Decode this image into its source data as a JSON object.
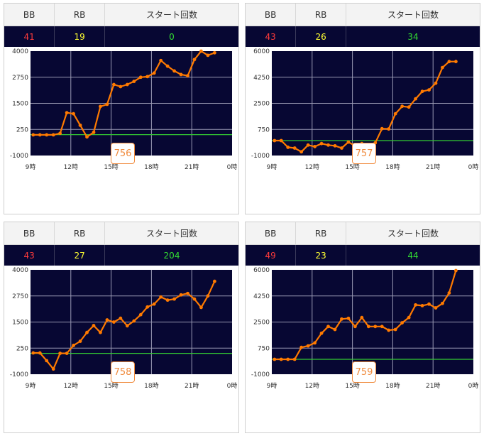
{
  "headers": {
    "bb": "BB",
    "rb": "RB",
    "start": "スタート回数"
  },
  "colors": {
    "plot_bg": "#070733",
    "line": "#ff7a00",
    "baseline": "#33cc33",
    "grid": "#9a9ab4",
    "bb": "#ff3b3b",
    "rb": "#ffff33",
    "start": "#33dd33",
    "button": "#f08a3c"
  },
  "panels": [
    {
      "bb": "41",
      "rb": "19",
      "start": "0",
      "machine": "756"
    },
    {
      "bb": "43",
      "rb": "26",
      "start": "34",
      "machine": "757"
    },
    {
      "bb": "43",
      "rb": "27",
      "start": "204",
      "machine": "758"
    },
    {
      "bb": "49",
      "rb": "23",
      "start": "44",
      "machine": "759"
    }
  ],
  "chart_data": [
    {
      "type": "line",
      "x_ticks": [
        "9時",
        "12時",
        "15時",
        "18時",
        "21時",
        "0時"
      ],
      "y_ticks": [
        "4000",
        "2750",
        "1500",
        "250",
        "-1000"
      ],
      "xlim": [
        9,
        24
      ],
      "ylim": [
        -1000,
        4000
      ],
      "baseline": 0,
      "grid": true,
      "x": [
        9.2,
        9.7,
        10.2,
        10.7,
        11.2,
        11.7,
        12.2,
        12.7,
        13.2,
        13.7,
        14.2,
        14.7,
        15.2,
        15.7,
        16.2,
        16.7,
        17.2,
        17.7,
        18.2,
        18.7,
        19.2,
        19.7,
        20.2,
        20.7,
        21.2,
        21.7,
        22.2,
        22.7
      ],
      "y": [
        -10,
        -10,
        -10,
        -10,
        60,
        1050,
        1000,
        450,
        -110,
        110,
        1350,
        1450,
        2400,
        2300,
        2400,
        2550,
        2750,
        2780,
        2950,
        3550,
        3280,
        3050,
        2880,
        2820,
        3600,
        4000,
        3800,
        3920
      ]
    },
    {
      "type": "line",
      "x_ticks": [
        "9時",
        "12時",
        "15時",
        "18時",
        "21時",
        "0時"
      ],
      "y_ticks": [
        "6000",
        "4250",
        "2500",
        "750",
        "-1000"
      ],
      "xlim": [
        9,
        24
      ],
      "ylim": [
        -1000,
        6000
      ],
      "baseline": 0,
      "grid": true,
      "x": [
        9.2,
        9.7,
        10.2,
        10.7,
        11.2,
        11.7,
        12.2,
        12.7,
        13.2,
        13.7,
        14.2,
        14.7,
        15.2,
        15.7,
        16.2,
        16.7,
        17.2,
        17.7,
        18.2,
        18.7,
        19.2,
        19.7,
        20.2,
        20.7,
        21.2,
        21.7,
        22.2,
        22.7
      ],
      "y": [
        0,
        0,
        -450,
        -500,
        -750,
        -300,
        -400,
        -200,
        -300,
        -350,
        -500,
        -100,
        -350,
        -200,
        -550,
        -150,
        800,
        780,
        1800,
        2300,
        2250,
        2800,
        3300,
        3400,
        3850,
        4900,
        5300,
        5300
      ]
    },
    {
      "type": "line",
      "x_ticks": [
        "9時",
        "12時",
        "15時",
        "18時",
        "21時",
        "0時"
      ],
      "y_ticks": [
        "4000",
        "2750",
        "1500",
        "250",
        "-1000"
      ],
      "xlim": [
        9,
        24
      ],
      "ylim": [
        -1000,
        4000
      ],
      "baseline": 0,
      "grid": true,
      "x": [
        9.2,
        9.7,
        10.2,
        10.7,
        11.2,
        11.7,
        12.2,
        12.7,
        13.2,
        13.7,
        14.2,
        14.7,
        15.2,
        15.7,
        16.2,
        16.7,
        17.2,
        17.7,
        18.2,
        18.7,
        19.2,
        19.7,
        20.2,
        20.7,
        21.2,
        21.7,
        22.2,
        22.7
      ],
      "y": [
        20,
        20,
        -350,
        -750,
        0,
        0,
        380,
        580,
        1000,
        1330,
        1000,
        1600,
        1500,
        1680,
        1320,
        1550,
        1850,
        2220,
        2360,
        2700,
        2550,
        2600,
        2800,
        2870,
        2600,
        2200,
        2750,
        3450
      ]
    },
    {
      "type": "line",
      "x_ticks": [
        "9時",
        "12時",
        "15時",
        "18時",
        "21時",
        "0時"
      ],
      "y_ticks": [
        "6000",
        "4250",
        "2500",
        "750",
        "-1000"
      ],
      "xlim": [
        9,
        24
      ],
      "ylim": [
        -1000,
        6000
      ],
      "baseline": 0,
      "grid": true,
      "x": [
        9.2,
        9.7,
        10.2,
        10.7,
        11.2,
        11.7,
        12.2,
        12.7,
        13.2,
        13.7,
        14.2,
        14.7,
        15.2,
        15.7,
        16.2,
        16.7,
        17.2,
        17.7,
        18.2,
        18.7,
        19.2,
        19.7,
        20.2,
        20.7,
        21.2,
        21.7,
        22.2,
        22.7
      ],
      "y": [
        0,
        0,
        0,
        0,
        800,
        900,
        1100,
        1750,
        2200,
        2000,
        2700,
        2750,
        2200,
        2800,
        2200,
        2200,
        2200,
        1950,
        2000,
        2450,
        2800,
        3650,
        3600,
        3700,
        3450,
        3750,
        4450,
        5950
      ]
    }
  ]
}
